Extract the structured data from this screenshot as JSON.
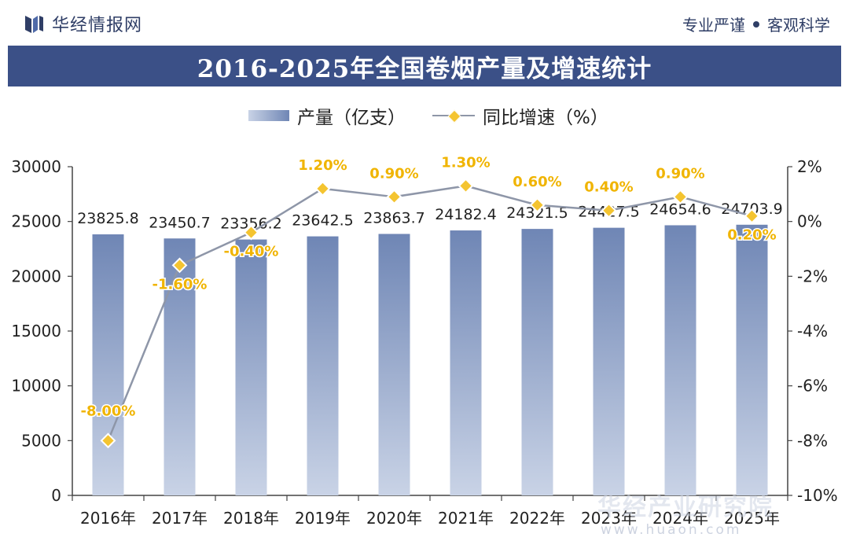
{
  "header": {
    "brand": "华经情报网",
    "slogan_left": "专业严谨",
    "slogan_right": "客观科学"
  },
  "chart_title": "2016-2025年全国卷烟产量及增速统计",
  "legend": {
    "bar_label": "产量（亿支）",
    "line_label": "同比增速（%）"
  },
  "watermark": {
    "line1": "华经产业研究院",
    "line2": "www.huaon.com"
  },
  "colors": {
    "title_bg": "#3b5087",
    "bar_top": "#c9d3e6",
    "bar_bottom": "#6f86b5",
    "line": "#8e96a8",
    "marker": "#f4c430",
    "pct_label": "#f0b400"
  },
  "chart_data": {
    "type": "bar+line",
    "categories": [
      "2016年",
      "2017年",
      "2018年",
      "2019年",
      "2020年",
      "2021年",
      "2022年",
      "2023年",
      "2024年",
      "2025年"
    ],
    "series": [
      {
        "name": "产量（亿支）",
        "type": "bar",
        "axis": "left",
        "values": [
          23825.8,
          23450.7,
          23356.2,
          23642.5,
          23863.7,
          24182.4,
          24321.5,
          24427.5,
          24654.6,
          24703.9
        ],
        "labels": [
          "23825.8",
          "23450.7",
          "23356.2",
          "23642.5",
          "23863.7",
          "24182.4",
          "24321.5",
          "24427.5",
          "24654.6",
          "24703.9"
        ]
      },
      {
        "name": "同比增速（%）",
        "type": "line",
        "axis": "right",
        "values": [
          -8.0,
          -1.6,
          -0.4,
          1.2,
          0.9,
          1.3,
          0.6,
          0.4,
          0.9,
          0.2
        ],
        "labels": [
          "-8.00%",
          "-1.60%",
          "-0.40%",
          "1.20%",
          "0.90%",
          "1.30%",
          "0.60%",
          "0.40%",
          "0.90%",
          "0.20%"
        ]
      }
    ],
    "y_left": {
      "min": 0,
      "max": 30000,
      "ticks": [
        "0",
        "5000",
        "10000",
        "15000",
        "20000",
        "25000",
        "30000"
      ]
    },
    "y_right": {
      "min": -10,
      "max": 2,
      "ticks": [
        "-10%",
        "-8%",
        "-6%",
        "-4%",
        "-2%",
        "0%",
        "2%"
      ]
    },
    "grid": false,
    "legend_position": "top"
  }
}
